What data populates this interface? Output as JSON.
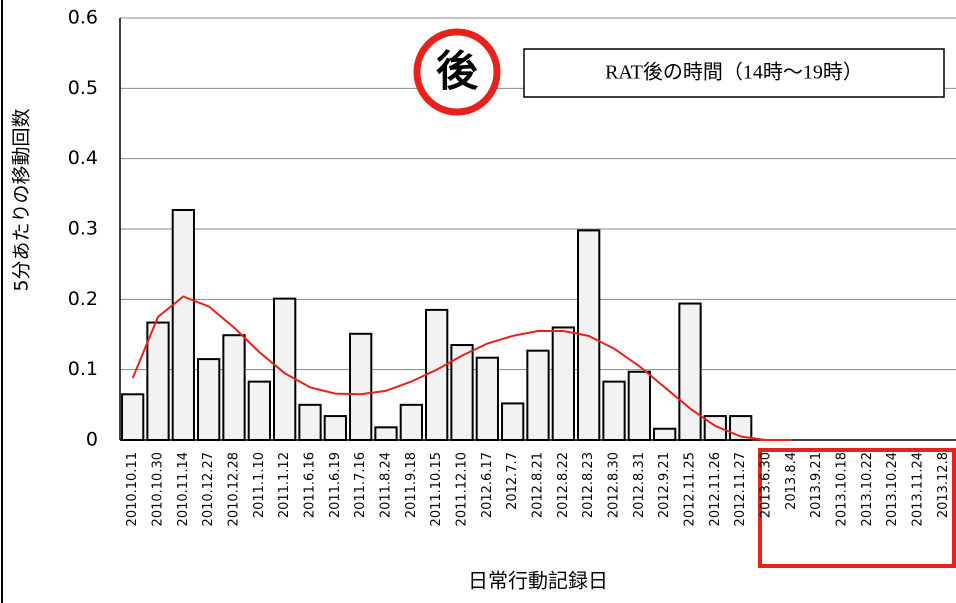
{
  "chart_data": {
    "type": "bar",
    "y_label": "5分あたりの移動回数",
    "x_label": "日常行動記録日",
    "annotations": [
      "後",
      "RAT後の時間（14時～19時）"
    ],
    "categories": [
      "2010.10.11",
      "2010.10.30",
      "2010.11.14",
      "2010.12.27",
      "2010.12.28",
      "2011.1.10",
      "2011.1.12",
      "2011.6.16",
      "2011.6.19",
      "2011.7.16",
      "2011.8.24",
      "2011.9.18",
      "2011.10.15",
      "2011.12.10",
      "2012.6.17",
      "2012.7.7",
      "2012.8.21",
      "2012.8.22",
      "2012.8.23",
      "2012.8.30",
      "2012.8.31",
      "2012.9.21",
      "2012.11.25",
      "2012.11.26",
      "2012.11.27",
      "2013.6.30",
      "2013.8.4",
      "2013.9.21",
      "2013.10.18",
      "2013.10.22",
      "2013.10.24",
      "2013.11.24",
      "2013.12.8"
    ],
    "values": [
      0.065,
      0.167,
      0.327,
      0.115,
      0.149,
      0.083,
      0.201,
      0.05,
      0.034,
      0.151,
      0.018,
      0.05,
      0.185,
      0.135,
      0.117,
      0.052,
      0.127,
      0.16,
      0.298,
      0.083,
      0.097,
      0.016,
      0.194,
      0.034,
      0.034,
      0,
      0,
      0,
      0,
      0,
      0,
      0,
      0
    ],
    "color": "#f2f2f2",
    "trend": {
      "color": "#e8211d",
      "values": [
        0.088,
        0.175,
        0.204,
        0.19,
        0.16,
        0.125,
        0.095,
        0.075,
        0.066,
        0.065,
        0.07,
        0.083,
        0.1,
        0.12,
        0.137,
        0.148,
        0.155,
        0.155,
        0.148,
        0.13,
        0.105,
        0.075,
        0.045,
        0.02,
        0.005,
        0,
        0,
        null,
        null,
        null,
        null,
        null,
        null
      ]
    },
    "ylim": [
      0,
      0.6
    ],
    "yticks": [
      0,
      0.1,
      0.2,
      0.3,
      0.4,
      0.5,
      0.6
    ],
    "grid": true
  }
}
